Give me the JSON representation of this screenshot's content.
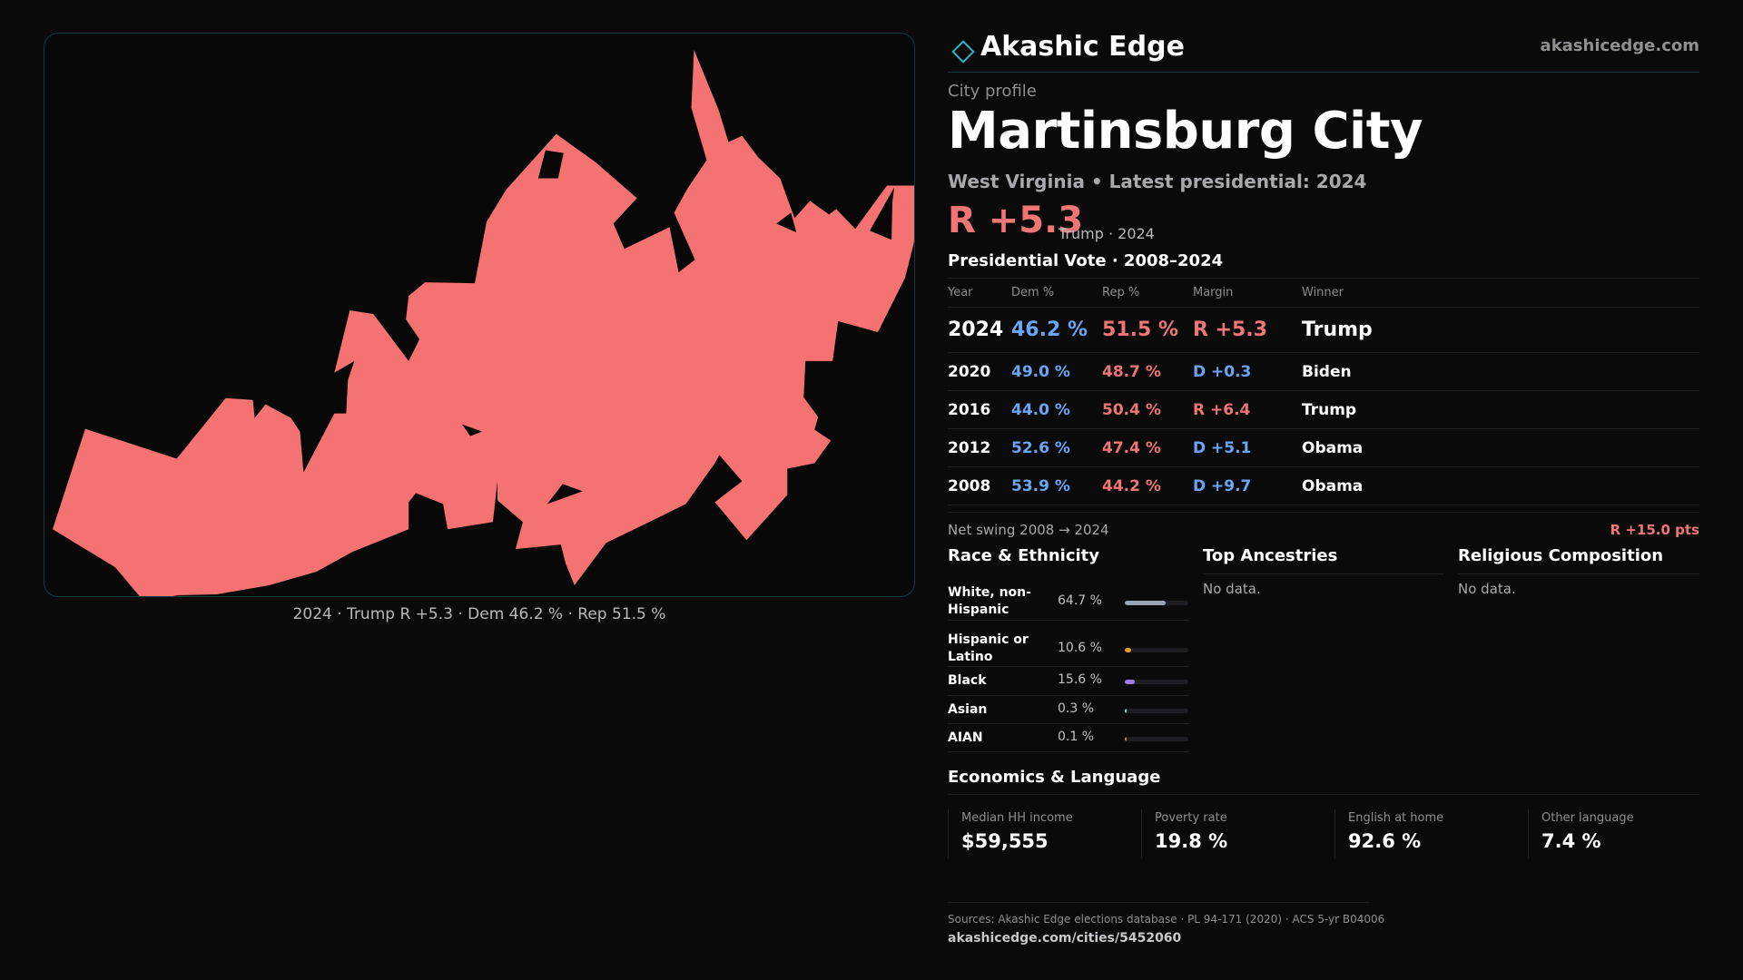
{
  "map": {
    "caption": "2024 · Trump R +5.3 · Dem 46.2 % · Rep 51.5 %",
    "fill_color": "#f47272",
    "border_color": "#163a40"
  },
  "brand": {
    "name": "Akashic Edge",
    "icon": "diamond-icon",
    "url": "akashicedge.com",
    "accent": "#2fb3c0"
  },
  "profile": {
    "kicker": "City profile",
    "city": "Martinsburg City",
    "subline": "West Virginia • Latest presidential: 2024",
    "margin": "R +5.3",
    "margin_sub": "Trump · 2024"
  },
  "presidential": {
    "heading": "Presidential Vote · 2008–2024",
    "columns": [
      "Year",
      "Dem %",
      "Rep %",
      "Margin",
      "Winner"
    ],
    "rows": [
      {
        "year": "2024",
        "dem": "46.2 %",
        "rep": "51.5 %",
        "margin": "R +5.3",
        "winner": "Trump"
      },
      {
        "year": "2020",
        "dem": "49.0 %",
        "rep": "48.7 %",
        "margin": "D +0.3",
        "winner": "Biden"
      },
      {
        "year": "2016",
        "dem": "44.0 %",
        "rep": "50.4 %",
        "margin": "R +6.4",
        "winner": "Trump"
      },
      {
        "year": "2012",
        "dem": "52.6 %",
        "rep": "47.4 %",
        "margin": "D +5.1",
        "winner": "Obama"
      },
      {
        "year": "2008",
        "dem": "53.9 %",
        "rep": "44.2 %",
        "margin": "D +9.7",
        "winner": "Obama"
      }
    ],
    "swing_label": "Net swing 2008 → 2024",
    "swing_value": "R +15.0 pts"
  },
  "race": {
    "title": "Race & Ethnicity",
    "rows": [
      {
        "label": "White, non-Hispanic",
        "value": "64.7 %",
        "pct": 64.7,
        "color": "#9aa3b4"
      },
      {
        "label": "Hispanic or Latino",
        "value": "10.6 %",
        "pct": 10.6,
        "color": "#e8972e"
      },
      {
        "label": "Black",
        "value": "15.6 %",
        "pct": 15.6,
        "color": "#9a7fe0"
      },
      {
        "label": "Asian",
        "value": "0.3 %",
        "pct": 0.3,
        "color": "#8fd0c8"
      },
      {
        "label": "AIAN",
        "value": "0.1 %",
        "pct": 0.1,
        "color": "#c08050"
      }
    ]
  },
  "ancestries": {
    "title": "Top Ancestries",
    "empty": "No data."
  },
  "religion": {
    "title": "Religious Composition",
    "empty": "No data."
  },
  "economics": {
    "title": "Economics & Language",
    "cells": [
      {
        "label": "Median HH income",
        "value": "$59,555"
      },
      {
        "label": "Poverty rate",
        "value": "19.8 %"
      },
      {
        "label": "English at home",
        "value": "92.6 %"
      },
      {
        "label": "Other language",
        "value": "7.4 %"
      }
    ]
  },
  "footer": {
    "sources": "Sources: Akashic Edge elections database · PL 94-171 (2020) · ACS 5-yr B04006",
    "url": "akashicedge.com/cities/5452060"
  }
}
